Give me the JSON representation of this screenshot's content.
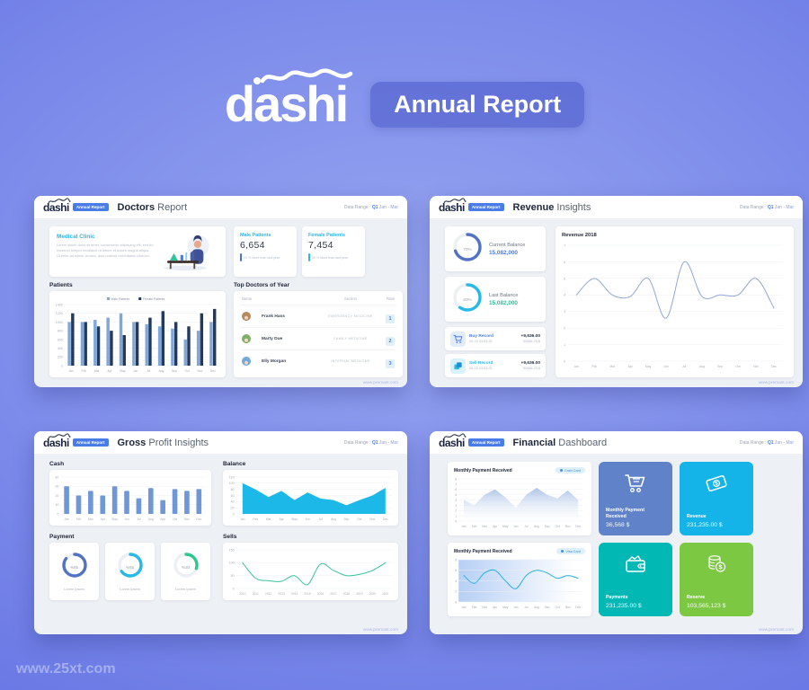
{
  "page": {
    "watermark": "www.25xt.com"
  },
  "hero": {
    "logo": "dashi",
    "badge": "Annual Report"
  },
  "common": {
    "logo": "dashi",
    "logo_badge": "Annual Report",
    "data_range_label": "Data Range :",
    "q": "Q1",
    "range": "Jan - Mar",
    "footer": "www.premast.com"
  },
  "doctors": {
    "title_bold": "Doctors",
    "title_rest": "Report",
    "clinic_title": "Medical Clinic",
    "clinic_text": "Lorem ipsum dolor sit amet, consectetur adipiscing elit, sed do eiusmod tempor incididunt ut labore et dolore magna aliqua. Ut enim ad minim veniam, quis nostrud exercitation ullamco.",
    "male_title": "Male Patients",
    "male_value": "6,654",
    "male_note": "20 % More than last year",
    "female_title": "Female Patients",
    "female_value": "7,454",
    "female_note": "30 % More than last year",
    "patients_label": "Patients",
    "top_doctors_label": "Top Doctors of Year",
    "col_name": "Name",
    "col_section": "Section",
    "col_rate": "Rate",
    "rows": [
      {
        "name": "Frank Hass",
        "section": "EMERGENCY MEDICINE",
        "rate": "1"
      },
      {
        "name": "Marty Due",
        "section": "FAMILY MEDICINE",
        "rate": "2"
      },
      {
        "name": "Elly Morgan",
        "section": "INTERNAL MEDICINE",
        "rate": "3"
      }
    ]
  },
  "revenue": {
    "title_bold": "Revenue",
    "title_rest": "Insights",
    "current_label": "Current Balance",
    "current_value": "15,082,000",
    "current_pct": "70%",
    "current_donut": {
      "pct": 70,
      "color": "#5272c4"
    },
    "last_label": "Last Balance",
    "last_value": "15,082,000",
    "last_pct": "60%",
    "last_donut": {
      "pct": 60,
      "color": "#29b9e6"
    },
    "buy_label": "Buy Record",
    "buy_date": "09-23 03:53:25",
    "buy_amount": "+9,636.00",
    "buy_total": "50666.23 $",
    "sell_label": "Sell Record",
    "sell_date": "09-23 03:53:25",
    "sell_amount": "+9,636.00",
    "sell_total": "50666.23 $",
    "chart_title": "Revenue 2018"
  },
  "gross": {
    "title_bold": "Gross",
    "title_rest": "Profit Insights",
    "cash_label": "Cash",
    "balance_label": "Balance",
    "payment_label": "Payment",
    "sells_label": "Sells",
    "donuts": [
      {
        "pct": 85,
        "label": "%85",
        "color": "#5272c4",
        "caption": "Lorem Ipsem"
      },
      {
        "pct": 65,
        "label": "%65",
        "color": "#29b9e6",
        "caption": "Lorem Ipsem"
      },
      {
        "pct": 30,
        "label": "%30",
        "color": "#2ec88f",
        "caption": "Lorem Ipsem"
      }
    ]
  },
  "financial": {
    "title_bold": "Financial",
    "title_rest": "Dashboard",
    "chart1_title": "Monthly Payment Received",
    "chart1_badge": "Cash Card",
    "chart2_title": "Monthly Payment Received",
    "chart2_badge": "Visa Card",
    "cards": [
      {
        "label": "Monthly Payment Received",
        "value": "36,568 $",
        "color": "#5f82c8"
      },
      {
        "label": "Revenue",
        "value": "231,235.00 $",
        "color": "#14b4e8"
      },
      {
        "label": "Payments",
        "value": "231,235.00 $",
        "color": "#02b8b4"
      },
      {
        "label": "Reserve",
        "value": "103,565,123 $",
        "color": "#7cc843"
      }
    ]
  },
  "chart_data": [
    {
      "id": "patients",
      "type": "groupedbar",
      "title": "Patients",
      "legend": true,
      "categories": [
        "Jan",
        "Feb",
        "Mar",
        "Apr",
        "May",
        "Jun",
        "Jul",
        "Aug",
        "Sep",
        "Oct",
        "Nov",
        "Dec"
      ],
      "series": [
        {
          "name": "Male Patients",
          "color": "#7fa8d9",
          "values": [
            1000,
            1000,
            1050,
            1100,
            1200,
            1000,
            950,
            900,
            850,
            600,
            800,
            1000
          ]
        },
        {
          "name": "Female Patients",
          "color": "#223a5e",
          "values": [
            1200,
            1000,
            900,
            800,
            700,
            1000,
            1100,
            1250,
            1000,
            900,
            1200,
            1300
          ]
        }
      ],
      "ylim": [
        0,
        1400
      ],
      "yticks": [
        0,
        200,
        400,
        600,
        800,
        1000,
        1200,
        1400
      ]
    },
    {
      "id": "revenue2018",
      "type": "line",
      "title": "Revenue 2018",
      "smooth": true,
      "color": "#8fa8d2",
      "categories": [
        "Jan",
        "Feb",
        "Mar",
        "Apr",
        "May",
        "Jun",
        "Jul",
        "Aug",
        "Sep",
        "Oct",
        "Nov",
        "Dec"
      ],
      "values": [
        4,
        5,
        4,
        3.9,
        5,
        2.6,
        6,
        3.9,
        4,
        4,
        5,
        3.2
      ],
      "ylim": [
        0,
        7
      ],
      "yticks": [
        0,
        1,
        2,
        3,
        4,
        5,
        6,
        7
      ]
    },
    {
      "id": "cash",
      "type": "bar",
      "title": "Cash",
      "color": "#6f97d8",
      "categories": [
        "Jan",
        "Feb",
        "Mar",
        "Apr",
        "May",
        "Jun",
        "Jul",
        "Aug",
        "Sep",
        "Oct",
        "Nov",
        "Dec"
      ],
      "values": [
        30,
        20,
        25,
        20,
        30,
        25,
        17,
        28,
        15,
        27,
        25,
        27
      ],
      "ylim": [
        0,
        40
      ],
      "yticks": [
        0,
        10,
        20,
        30,
        40
      ]
    },
    {
      "id": "balance",
      "type": "area",
      "title": "Balance",
      "smooth": false,
      "color": "#1cb8e8",
      "categories": [
        "Jan",
        "Feb",
        "Mar",
        "Apr",
        "May",
        "Jun",
        "Jul",
        "Aug",
        "Sep",
        "Oct",
        "Nov",
        "Dec"
      ],
      "values": [
        100,
        80,
        55,
        75,
        45,
        70,
        50,
        45,
        28,
        45,
        60,
        85
      ],
      "ylim": [
        0,
        120
      ],
      "yticks": [
        0,
        20,
        40,
        60,
        80,
        100,
        120
      ]
    },
    {
      "id": "sells",
      "type": "line",
      "title": "Sells",
      "smooth": true,
      "color": "#35c29b",
      "categories": [
        "2010",
        "2011",
        "2012",
        "2013",
        "2014",
        "2015",
        "2016",
        "2017",
        "2018",
        "2019",
        "2020",
        "2021"
      ],
      "values": [
        100,
        40,
        30,
        28,
        50,
        15,
        95,
        70,
        50,
        55,
        70,
        100
      ],
      "ylim": [
        0,
        150
      ],
      "yticks": [
        0,
        50,
        100,
        150
      ]
    },
    {
      "id": "cashcard",
      "type": "area",
      "title": "Monthly Payment Received",
      "smooth": false,
      "fill": "gradient-v",
      "color": "#a9c0e6",
      "categories": [
        "Jan",
        "Feb",
        "Mar",
        "Apr",
        "May",
        "Jun",
        "Jul",
        "Aug",
        "Sep",
        "Oct",
        "Nov",
        "Dec"
      ],
      "values": [
        4,
        3,
        5,
        6,
        4.5,
        2.5,
        5,
        6.3,
        5,
        4.3,
        5.8,
        4
      ],
      "ylim": [
        0,
        8
      ],
      "yticks": [
        0,
        1,
        2,
        3,
        4,
        5,
        6,
        7,
        8
      ]
    },
    {
      "id": "visacard",
      "type": "line",
      "title": "Monthly Payment Received",
      "smooth": true,
      "color": "#2bb3e0",
      "bg": "gradient-h",
      "categories": [
        "Jan",
        "Feb",
        "Mar",
        "Apr",
        "May",
        "Jun",
        "Jul",
        "Aug",
        "Sep",
        "Oct",
        "Nov",
        "Dec"
      ],
      "values": [
        5,
        3.5,
        5.5,
        6,
        4,
        2.5,
        5,
        6,
        5.5,
        4.5,
        5,
        4.5
      ],
      "ylim": [
        0,
        8
      ],
      "yticks": [
        0,
        2,
        4,
        6,
        8
      ]
    }
  ]
}
